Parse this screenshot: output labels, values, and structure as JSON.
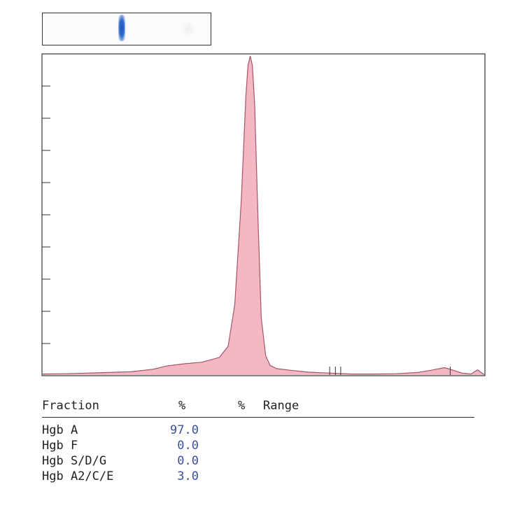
{
  "gel_strip": {
    "band_color": "#2a5fc4"
  },
  "chart_data": {
    "type": "area",
    "title": "",
    "xlabel": "",
    "ylabel": "",
    "fill_color": "#f4b8c4",
    "line_color": "#a45566",
    "grid": false,
    "y_ticks": 9,
    "x_range": [
      0,
      100
    ],
    "y_range": [
      0,
      100
    ],
    "x": [
      0,
      5,
      10,
      15,
      20,
      25,
      28,
      32,
      36,
      40,
      42,
      43.5,
      45,
      46,
      46.5,
      47,
      47.5,
      48,
      48.7,
      49.5,
      50.5,
      51.5,
      53,
      56,
      60,
      65,
      70,
      75,
      80,
      85,
      88,
      91,
      93,
      95,
      97,
      98.5,
      100
    ],
    "y": [
      0.3,
      0.4,
      0.6,
      0.8,
      1.0,
      1.8,
      2.8,
      3.5,
      4.0,
      5.5,
      9.0,
      22,
      55,
      87,
      97,
      100,
      97,
      85,
      52,
      18,
      6,
      3.0,
      2.0,
      1.5,
      0.9,
      0.6,
      0.3,
      0.3,
      0.4,
      0.8,
      1.5,
      2.3,
      1.5,
      0.6,
      0.3,
      1.6,
      0.1
    ],
    "markers_x": [
      65.0,
      66.3,
      67.5,
      92.3
    ]
  },
  "results": {
    "headers": {
      "fraction": "Fraction",
      "pct1": "%",
      "pct2": "%",
      "range": "Range"
    },
    "rows": [
      {
        "name": "Hgb A",
        "percent": "97.0"
      },
      {
        "name": "Hgb F",
        "percent": "0.0"
      },
      {
        "name": "Hgb S/D/G",
        "percent": "0.0"
      },
      {
        "name": "Hgb A2/C/E",
        "percent": "3.0"
      }
    ]
  }
}
